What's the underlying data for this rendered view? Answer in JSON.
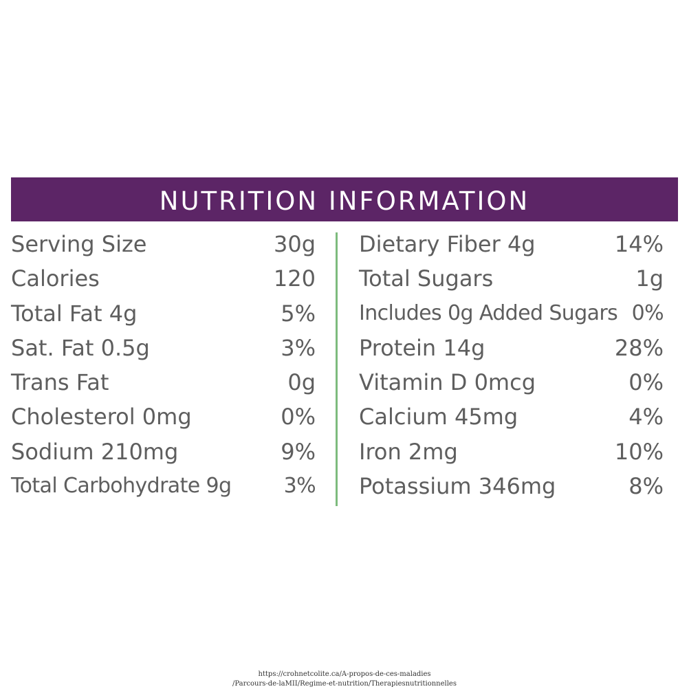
{
  "header": {
    "title": "NUTRITION INFORMATION"
  },
  "colors": {
    "banner": "#5c2566",
    "banner_text": "#ffffff",
    "body_text": "#5e5e5e",
    "divider": "#7dbb7d"
  },
  "left_rows": [
    {
      "label": "Serving Size",
      "value": "30g"
    },
    {
      "label": "Calories",
      "value": "120"
    },
    {
      "label": "Total Fat 4g",
      "value": "5%"
    },
    {
      "label": "Sat. Fat 0.5g",
      "value": "3%"
    },
    {
      "label": "Trans Fat",
      "value": "0g"
    },
    {
      "label": "Cholesterol 0mg",
      "value": "0%"
    },
    {
      "label": "Sodium 210mg",
      "value": "9%"
    },
    {
      "label": "Total Carbohydrate 9g",
      "value": "3%"
    }
  ],
  "right_rows": [
    {
      "label": "Dietary Fiber 4g",
      "value": "14%"
    },
    {
      "label": "Total Sugars",
      "value": "1g"
    },
    {
      "label": "Includes 0g Added Sugars",
      "value": "0%"
    },
    {
      "label": "Protein 14g",
      "value": "28%"
    },
    {
      "label": "Vitamin D 0mcg",
      "value": "0%"
    },
    {
      "label": "Calcium 45mg",
      "value": "4%"
    },
    {
      "label": "Iron 2mg",
      "value": "10%"
    },
    {
      "label": "Potassium 346mg",
      "value": "8%"
    }
  ],
  "source": {
    "line1": "https://crohnetcolite.ca/A-propos-de-ces-maladies",
    "line2": "/Parcours-de-laMII/Regime-et-nutrition/Therapiesnutritionnelles"
  }
}
